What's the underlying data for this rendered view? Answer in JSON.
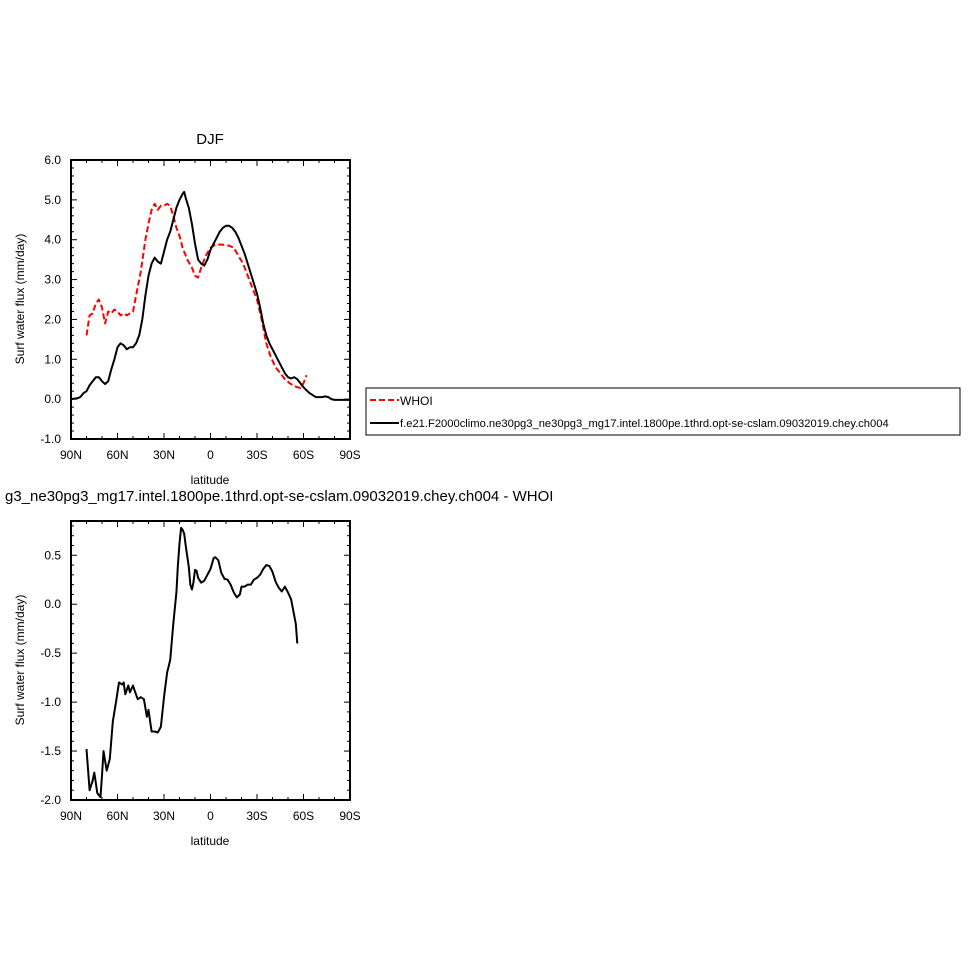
{
  "chart_data": [
    {
      "type": "line",
      "title": "DJF",
      "xlabel": "latitude",
      "ylabel": "Surf water flux (mm/day)",
      "xlim": [
        90,
        -90
      ],
      "ylim": [
        -1.0,
        6.0
      ],
      "x_ticks": [
        90,
        60,
        30,
        0,
        -30,
        -60,
        -90
      ],
      "x_tick_labels": [
        "90N",
        "60N",
        "30N",
        "0",
        "30S",
        "60S",
        "90S"
      ],
      "y_ticks": [
        -1.0,
        0.0,
        1.0,
        2.0,
        3.0,
        4.0,
        5.0,
        6.0
      ],
      "y_tick_labels": [
        "-1.0",
        "0.0",
        "1.0",
        "2.0",
        "3.0",
        "4.0",
        "5.0",
        "6.0"
      ],
      "legend": {
        "placement": "right",
        "entries": [
          {
            "label": "WHOI",
            "color": "#ff0000",
            "dash": true
          },
          {
            "label": "f.e21.F2000climo.ne30pg3_ne30pg3_mg17.intel.1800pe.1thrd.opt-se-cslam.09032019.chey.ch004",
            "color": "#000000",
            "dash": false
          }
        ]
      },
      "series": [
        {
          "name": "WHOI",
          "color": "#ff0000",
          "dash": true,
          "points": [
            [
              80,
              1.6
            ],
            [
              78,
              2.1
            ],
            [
              76,
              2.15
            ],
            [
              74,
              2.4
            ],
            [
              72,
              2.5
            ],
            [
              70,
              2.3
            ],
            [
              68,
              1.9
            ],
            [
              66,
              2.2
            ],
            [
              64,
              2.15
            ],
            [
              62,
              2.25
            ],
            [
              60,
              2.2
            ],
            [
              58,
              2.1
            ],
            [
              56,
              2.15
            ],
            [
              54,
              2.1
            ],
            [
              52,
              2.15
            ],
            [
              50,
              2.2
            ],
            [
              48,
              2.6
            ],
            [
              45,
              3.2
            ],
            [
              42,
              4.0
            ],
            [
              40,
              4.4
            ],
            [
              38,
              4.75
            ],
            [
              36,
              4.9
            ],
            [
              34,
              4.75
            ],
            [
              32,
              4.85
            ],
            [
              30,
              4.85
            ],
            [
              28,
              4.9
            ],
            [
              26,
              4.85
            ],
            [
              24,
              4.6
            ],
            [
              22,
              4.3
            ],
            [
              20,
              4.1
            ],
            [
              18,
              3.8
            ],
            [
              15,
              3.5
            ],
            [
              12,
              3.3
            ],
            [
              10,
              3.1
            ],
            [
              8,
              3.05
            ],
            [
              6,
              3.3
            ],
            [
              3,
              3.6
            ],
            [
              0,
              3.8
            ],
            [
              -3,
              3.87
            ],
            [
              -6,
              3.88
            ],
            [
              -9,
              3.87
            ],
            [
              -12,
              3.85
            ],
            [
              -15,
              3.8
            ],
            [
              -18,
              3.6
            ],
            [
              -21,
              3.4
            ],
            [
              -24,
              3.1
            ],
            [
              -27,
              2.8
            ],
            [
              -30,
              2.5
            ],
            [
              -33,
              2.0
            ],
            [
              -36,
              1.4
            ],
            [
              -39,
              1.05
            ],
            [
              -42,
              0.8
            ],
            [
              -45,
              0.65
            ],
            [
              -48,
              0.5
            ],
            [
              -51,
              0.4
            ],
            [
              -54,
              0.33
            ],
            [
              -56,
              0.3
            ],
            [
              -58,
              0.28
            ],
            [
              -60,
              0.4
            ],
            [
              -62,
              0.6
            ]
          ]
        },
        {
          "name": "f.e21.F2000climo.ne30pg3_ne30pg3_mg17.intel.1800pe.1thrd.opt-se-cslam.09032019.chey.ch004",
          "color": "#000000",
          "dash": false,
          "points": [
            [
              90,
              0.0
            ],
            [
              86,
              0.02
            ],
            [
              84,
              0.05
            ],
            [
              82,
              0.15
            ],
            [
              80,
              0.2
            ],
            [
              78,
              0.35
            ],
            [
              76,
              0.45
            ],
            [
              74,
              0.55
            ],
            [
              72,
              0.55
            ],
            [
              70,
              0.45
            ],
            [
              68,
              0.38
            ],
            [
              66,
              0.45
            ],
            [
              64,
              0.75
            ],
            [
              62,
              1.0
            ],
            [
              60,
              1.3
            ],
            [
              58,
              1.4
            ],
            [
              56,
              1.35
            ],
            [
              54,
              1.25
            ],
            [
              52,
              1.3
            ],
            [
              50,
              1.3
            ],
            [
              48,
              1.4
            ],
            [
              46,
              1.6
            ],
            [
              44,
              2.0
            ],
            [
              42,
              2.6
            ],
            [
              40,
              3.1
            ],
            [
              38,
              3.4
            ],
            [
              36,
              3.55
            ],
            [
              34,
              3.45
            ],
            [
              32,
              3.4
            ],
            [
              30,
              3.7
            ],
            [
              28,
              4.0
            ],
            [
              26,
              4.2
            ],
            [
              24,
              4.5
            ],
            [
              22,
              4.8
            ],
            [
              20,
              5.0
            ],
            [
              18,
              5.15
            ],
            [
              17,
              5.2
            ],
            [
              16,
              5.05
            ],
            [
              14,
              4.8
            ],
            [
              12,
              4.4
            ],
            [
              10,
              3.9
            ],
            [
              8,
              3.5
            ],
            [
              6,
              3.4
            ],
            [
              4,
              3.35
            ],
            [
              2,
              3.5
            ],
            [
              0,
              3.75
            ],
            [
              -2,
              3.9
            ],
            [
              -4,
              4.05
            ],
            [
              -6,
              4.2
            ],
            [
              -8,
              4.3
            ],
            [
              -10,
              4.35
            ],
            [
              -12,
              4.35
            ],
            [
              -14,
              4.3
            ],
            [
              -16,
              4.2
            ],
            [
              -18,
              4.05
            ],
            [
              -20,
              3.85
            ],
            [
              -22,
              3.65
            ],
            [
              -24,
              3.4
            ],
            [
              -26,
              3.15
            ],
            [
              -28,
              2.9
            ],
            [
              -30,
              2.65
            ],
            [
              -32,
              2.3
            ],
            [
              -34,
              1.9
            ],
            [
              -36,
              1.6
            ],
            [
              -38,
              1.4
            ],
            [
              -40,
              1.25
            ],
            [
              -42,
              1.1
            ],
            [
              -44,
              0.95
            ],
            [
              -46,
              0.8
            ],
            [
              -48,
              0.65
            ],
            [
              -50,
              0.55
            ],
            [
              -52,
              0.52
            ],
            [
              -54,
              0.55
            ],
            [
              -56,
              0.5
            ],
            [
              -58,
              0.4
            ],
            [
              -60,
              0.3
            ],
            [
              -62,
              0.22
            ],
            [
              -64,
              0.15
            ],
            [
              -66,
              0.1
            ],
            [
              -68,
              0.05
            ],
            [
              -70,
              0.05
            ],
            [
              -72,
              0.05
            ],
            [
              -74,
              0.07
            ],
            [
              -76,
              0.05
            ],
            [
              -78,
              0.0
            ],
            [
              -80,
              -0.02
            ],
            [
              -84,
              -0.02
            ],
            [
              -90,
              -0.02
            ]
          ]
        }
      ]
    },
    {
      "type": "line",
      "title": "g3_ne30pg3_mg17.intel.1800pe.1thrd.opt-se-cslam.09032019.chey.ch004 - WHOI",
      "xlabel": "latitude",
      "ylabel": "Surf water flux (mm/day)",
      "xlim": [
        90,
        -90
      ],
      "ylim": [
        -2.0,
        0.85
      ],
      "x_ticks": [
        90,
        60,
        30,
        0,
        -30,
        -60,
        -90
      ],
      "x_tick_labels": [
        "90N",
        "60N",
        "30N",
        "0",
        "30S",
        "60S",
        "90S"
      ],
      "y_ticks": [
        -2.0,
        -1.5,
        -1.0,
        -0.5,
        0.0,
        0.5
      ],
      "y_tick_labels": [
        "-2.0",
        "-1.5",
        "-1.0",
        "-0.5",
        "0.0",
        "0.5"
      ],
      "series": [
        {
          "color": "#000000",
          "dash": false,
          "points": [
            [
              80,
              -1.48
            ],
            [
              78,
              -1.9
            ],
            [
              76,
              -1.8
            ],
            [
              75,
              -1.72
            ],
            [
              73,
              -1.93
            ],
            [
              71,
              -1.97
            ],
            [
              70,
              -1.75
            ],
            [
              69,
              -1.5
            ],
            [
              67,
              -1.7
            ],
            [
              65,
              -1.58
            ],
            [
              63,
              -1.2
            ],
            [
              61,
              -1.0
            ],
            [
              59,
              -0.8
            ],
            [
              57,
              -0.82
            ],
            [
              56,
              -0.8
            ],
            [
              55,
              -0.92
            ],
            [
              53,
              -0.83
            ],
            [
              52,
              -0.9
            ],
            [
              50,
              -0.83
            ],
            [
              49,
              -0.88
            ],
            [
              47,
              -0.97
            ],
            [
              45,
              -0.95
            ],
            [
              43,
              -0.97
            ],
            [
              41,
              -1.15
            ],
            [
              40,
              -1.08
            ],
            [
              38,
              -1.3
            ],
            [
              36,
              -1.3
            ],
            [
              34,
              -1.31
            ],
            [
              32,
              -1.25
            ],
            [
              30,
              -0.95
            ],
            [
              28,
              -0.7
            ],
            [
              26,
              -0.57
            ],
            [
              24,
              -0.2
            ],
            [
              22,
              0.12
            ],
            [
              21,
              0.4
            ],
            [
              20,
              0.62
            ],
            [
              19,
              0.78
            ],
            [
              18,
              0.76
            ],
            [
              17,
              0.72
            ],
            [
              16,
              0.6
            ],
            [
              14,
              0.38
            ],
            [
              13,
              0.2
            ],
            [
              12,
              0.15
            ],
            [
              11,
              0.22
            ],
            [
              10,
              0.35
            ],
            [
              9,
              0.34
            ],
            [
              8,
              0.27
            ],
            [
              6,
              0.22
            ],
            [
              4,
              0.24
            ],
            [
              2,
              0.3
            ],
            [
              0,
              0.36
            ],
            [
              -2,
              0.47
            ],
            [
              -3,
              0.48
            ],
            [
              -5,
              0.45
            ],
            [
              -7,
              0.32
            ],
            [
              -9,
              0.26
            ],
            [
              -11,
              0.25
            ],
            [
              -13,
              0.2
            ],
            [
              -15,
              0.12
            ],
            [
              -17,
              0.07
            ],
            [
              -19,
              0.1
            ],
            [
              -20,
              0.18
            ],
            [
              -22,
              0.18
            ],
            [
              -24,
              0.2
            ],
            [
              -26,
              0.2
            ],
            [
              -28,
              0.25
            ],
            [
              -30,
              0.27
            ],
            [
              -32,
              0.3
            ],
            [
              -34,
              0.36
            ],
            [
              -36,
              0.4
            ],
            [
              -38,
              0.39
            ],
            [
              -40,
              0.33
            ],
            [
              -42,
              0.23
            ],
            [
              -44,
              0.17
            ],
            [
              -46,
              0.13
            ],
            [
              -48,
              0.18
            ],
            [
              -50,
              0.12
            ],
            [
              -52,
              0.05
            ],
            [
              -53,
              -0.03
            ],
            [
              -55,
              -0.2
            ],
            [
              -56,
              -0.4
            ]
          ]
        }
      ]
    }
  ]
}
